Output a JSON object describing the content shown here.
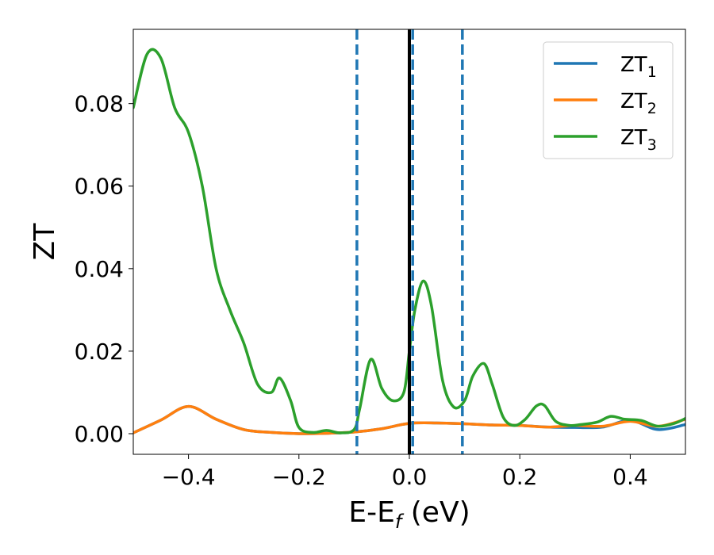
{
  "chart_data": {
    "type": "line",
    "xlabel": "E-E",
    "xlabel_sub": "f",
    "xlabel_unit": " (eV)",
    "ylabel": "ZT",
    "xlim": [
      -0.5,
      0.5
    ],
    "ylim": [
      -0.005,
      0.098
    ],
    "xticks": [
      -0.4,
      -0.2,
      0.0,
      0.2,
      0.4
    ],
    "xtick_labels": [
      "−0.4",
      "−0.2",
      "0.0",
      "0.2",
      "0.4"
    ],
    "yticks": [
      0.0,
      0.02,
      0.04,
      0.06,
      0.08
    ],
    "ytick_labels": [
      "0.00",
      "0.02",
      "0.04",
      "0.06",
      "0.08"
    ],
    "grid": false,
    "legend_position": "top-right",
    "vlines": [
      {
        "x": 0.0,
        "style": "solid",
        "color": "#000000"
      },
      {
        "x": -0.095,
        "style": "dashed",
        "color": "#1f77b4"
      },
      {
        "x": 0.006,
        "style": "dashed",
        "color": "#1f77b4"
      },
      {
        "x": 0.096,
        "style": "dashed",
        "color": "#1f77b4"
      }
    ],
    "series": [
      {
        "name": "ZT",
        "sub": "1",
        "color": "#1f77b4",
        "x": [
          -0.5,
          -0.45,
          -0.4,
          -0.35,
          -0.3,
          -0.25,
          -0.2,
          -0.15,
          -0.1,
          -0.05,
          0.0,
          0.05,
          0.1,
          0.15,
          0.2,
          0.25,
          0.3,
          0.35,
          0.4,
          0.45,
          0.5
        ],
        "y": [
          0.0002,
          0.0033,
          0.0066,
          0.0035,
          0.001,
          0.0003,
          0.0,
          0.0001,
          0.0004,
          0.0012,
          0.0025,
          0.0026,
          0.0024,
          0.0021,
          0.002,
          0.0016,
          0.0015,
          0.0016,
          0.0032,
          0.001,
          0.0022
        ]
      },
      {
        "name": "ZT",
        "sub": "2",
        "color": "#ff7f0e",
        "x": [
          -0.5,
          -0.45,
          -0.4,
          -0.35,
          -0.3,
          -0.25,
          -0.2,
          -0.15,
          -0.1,
          -0.05,
          0.0,
          0.05,
          0.1,
          0.15,
          0.2,
          0.25,
          0.3,
          0.35,
          0.4,
          0.45,
          0.5
        ],
        "y": [
          0.0002,
          0.0033,
          0.0066,
          0.0035,
          0.001,
          0.0003,
          0.0,
          0.0001,
          0.0004,
          0.0012,
          0.0025,
          0.0026,
          0.0024,
          0.0021,
          0.002,
          0.0016,
          0.002,
          0.0018,
          0.003,
          0.0018,
          0.0035
        ]
      },
      {
        "name": "ZT",
        "sub": "3",
        "color": "#2ca02c",
        "x": [
          -0.5,
          -0.475,
          -0.45,
          -0.425,
          -0.4,
          -0.375,
          -0.35,
          -0.325,
          -0.3,
          -0.275,
          -0.25,
          -0.235,
          -0.215,
          -0.2,
          -0.175,
          -0.15,
          -0.125,
          -0.1,
          -0.09,
          -0.07,
          -0.05,
          -0.03,
          -0.01,
          0.0,
          0.01,
          0.025,
          0.04,
          0.06,
          0.08,
          0.1,
          0.115,
          0.135,
          0.15,
          0.17,
          0.19,
          0.21,
          0.23,
          0.245,
          0.265,
          0.29,
          0.31,
          0.34,
          0.365,
          0.39,
          0.42,
          0.45,
          0.48,
          0.5
        ],
        "y": [
          0.079,
          0.092,
          0.091,
          0.079,
          0.073,
          0.06,
          0.04,
          0.03,
          0.022,
          0.012,
          0.01,
          0.0135,
          0.008,
          0.0015,
          0.0003,
          0.0008,
          0.0002,
          0.001,
          0.006,
          0.018,
          0.011,
          0.008,
          0.01,
          0.02,
          0.03,
          0.037,
          0.031,
          0.013,
          0.0065,
          0.008,
          0.014,
          0.017,
          0.012,
          0.004,
          0.002,
          0.0035,
          0.0067,
          0.0068,
          0.003,
          0.002,
          0.0022,
          0.0028,
          0.0042,
          0.0035,
          0.0032,
          0.0018,
          0.0025,
          0.0037
        ]
      }
    ]
  }
}
